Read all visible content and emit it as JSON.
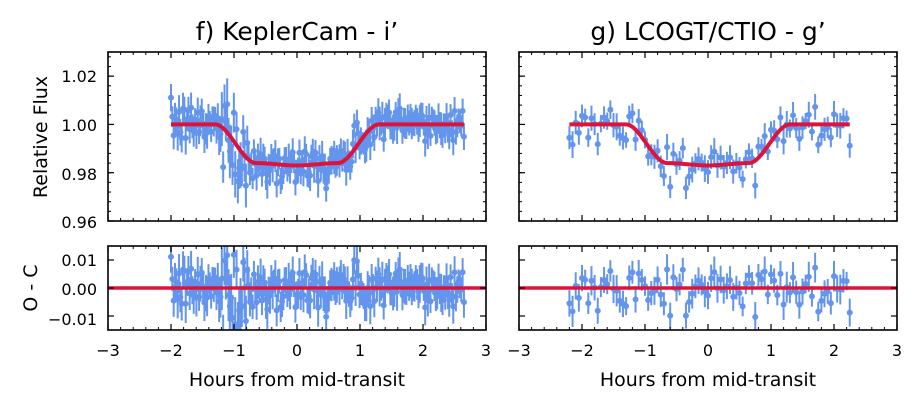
{
  "colors": {
    "data": "#6495ED",
    "model": "#DC143C",
    "axis": "#000000"
  },
  "chart_data": [
    {
      "type": "scatter",
      "title": "f) KeplerCam - i’",
      "xlabel": "Hours from mid-transit",
      "ylabel_top": "Relative Flux",
      "ylabel_bottom": "O - C",
      "xlim": [
        -3,
        3
      ],
      "ylim_top": [
        0.96,
        1.03
      ],
      "ylim_bottom": [
        -0.015,
        0.015
      ],
      "xticks": [
        -3,
        -2,
        -1,
        0,
        1,
        2,
        3
      ],
      "xtick_labels": [
        "−3",
        "−2",
        "−1",
        "0",
        "1",
        "2",
        "3"
      ],
      "yticks_top": [
        0.96,
        0.98,
        1.0,
        1.02
      ],
      "ytick_labels_top": [
        "0.96",
        "0.98",
        "1.00",
        "1.02"
      ],
      "yticks_bottom": [
        -0.01,
        0.0,
        0.01
      ],
      "ytick_labels_bottom": [
        "−0.01",
        "0.00",
        "0.01"
      ],
      "series": [
        {
          "name": "observations",
          "x_range": [
            -2.0,
            2.65
          ],
          "n_points": 220,
          "out_of_transit_flux": 1.0,
          "scatter": 0.004,
          "errorbar": 0.005,
          "note": "extra scatter near x ≈ -1.2 to -0.8"
        },
        {
          "name": "transit model",
          "x": [
            -2.0,
            -1.3,
            -0.65,
            0.0,
            0.65,
            1.3,
            2.65
          ],
          "y": [
            1.0,
            1.0,
            0.984,
            0.983,
            0.984,
            1.0,
            1.0
          ]
        },
        {
          "name": "residual baseline",
          "y": 0.0
        }
      ]
    },
    {
      "type": "scatter",
      "title": "g) LCOGT/CTIO - g’",
      "xlabel": "Hours from mid-transit",
      "xlim": [
        -3,
        3
      ],
      "ylim_top": [
        0.96,
        1.03
      ],
      "ylim_bottom": [
        -0.015,
        0.015
      ],
      "xticks": [
        -3,
        -2,
        -1,
        0,
        1,
        2,
        3
      ],
      "xtick_labels": [
        "−3",
        "−2",
        "−1",
        "0",
        "1",
        "2",
        "3"
      ],
      "series": [
        {
          "name": "observations",
          "x_range": [
            -2.2,
            2.25
          ],
          "n_points": 90,
          "out_of_transit_flux": 1.0,
          "scatter": 0.004,
          "errorbar": 0.004
        },
        {
          "name": "transit model",
          "x": [
            -2.2,
            -1.3,
            -0.65,
            0.0,
            0.65,
            1.3,
            2.25
          ],
          "y": [
            1.0,
            1.0,
            0.984,
            0.983,
            0.984,
            1.0,
            1.0
          ]
        },
        {
          "name": "residual baseline",
          "y": 0.0
        }
      ]
    }
  ]
}
